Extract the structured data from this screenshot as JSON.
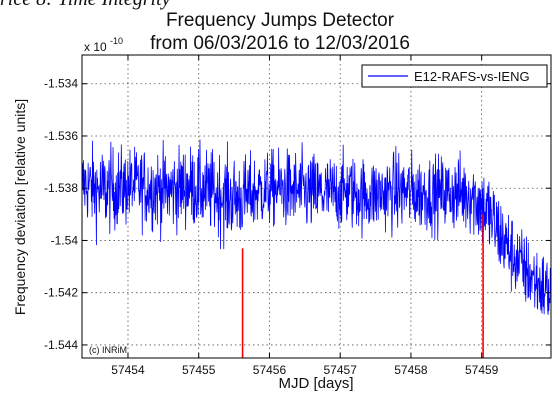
{
  "page_snippet": "rice 8: Time Integrity",
  "chart_data": {
    "type": "line",
    "title_line1": "Frequency Jumps Detector",
    "title_line2": "from 06/03/2016 to 12/03/2016",
    "xlabel": "MJD [days]",
    "ylabel": "Frequency deviation [relative units]",
    "y_exponent_label": "x 10",
    "y_exponent_power": "-10",
    "watermark": "(c) INRiM",
    "xlim": [
      57453.35,
      57459.98
    ],
    "ylim": [
      -1.5445,
      -1.5329
    ],
    "x_ticks": [
      57454,
      57455,
      57456,
      57457,
      57458,
      57459
    ],
    "x_tick_labels": [
      "57454",
      "57455",
      "57456",
      "57457",
      "57458",
      "57459"
    ],
    "y_ticks": [
      -1.534,
      -1.536,
      -1.538,
      -1.54,
      -1.542,
      -1.544
    ],
    "y_tick_labels": [
      "-1.534",
      "-1.536",
      "-1.538",
      "-1.54",
      "-1.542",
      "-1.544"
    ],
    "grid": true,
    "legend_position": "top-right",
    "series": [
      {
        "name": "E12-RAFS-vs-IENG",
        "color": "#0000ff",
        "x": [
          57453.35,
          57453.6,
          57453.85,
          57454.1,
          57454.35,
          57454.6,
          57454.85,
          57455.1,
          57455.35,
          57455.6,
          57455.85,
          57456.1,
          57456.35,
          57456.6,
          57456.85,
          57457.1,
          57457.35,
          57457.6,
          57457.85,
          57458.1,
          57458.35,
          57458.6,
          57458.85,
          57459.1,
          57459.35,
          57459.6,
          57459.85,
          57459.98
        ],
        "y": [
          -1.5378,
          -1.5381,
          -1.538,
          -1.5379,
          -1.538,
          -1.5381,
          -1.5379,
          -1.5381,
          -1.5383,
          -1.5384,
          -1.5381,
          -1.538,
          -1.5381,
          -1.5382,
          -1.5382,
          -1.5381,
          -1.5383,
          -1.5382,
          -1.5381,
          -1.5382,
          -1.5382,
          -1.5382,
          -1.5382,
          -1.539,
          -1.5402,
          -1.5411,
          -1.5418,
          -1.542
        ],
        "spread": [
          0.0012,
          0.0014,
          0.0013,
          0.0012,
          0.0013,
          0.0013,
          0.0013,
          0.0013,
          0.0014,
          0.0013,
          0.0012,
          0.0012,
          0.0013,
          0.0013,
          0.0012,
          0.0012,
          0.0012,
          0.0012,
          0.0013,
          0.0012,
          0.0012,
          0.0012,
          0.0013,
          0.0014,
          0.0013,
          0.0012,
          0.0012,
          0.0012
        ]
      }
    ],
    "jumps": {
      "color": "#ff0000",
      "items": [
        {
          "x": 57455.62,
          "y_top": -1.5403
        },
        {
          "x": 57459.02,
          "y_top": -1.539
        }
      ]
    }
  }
}
